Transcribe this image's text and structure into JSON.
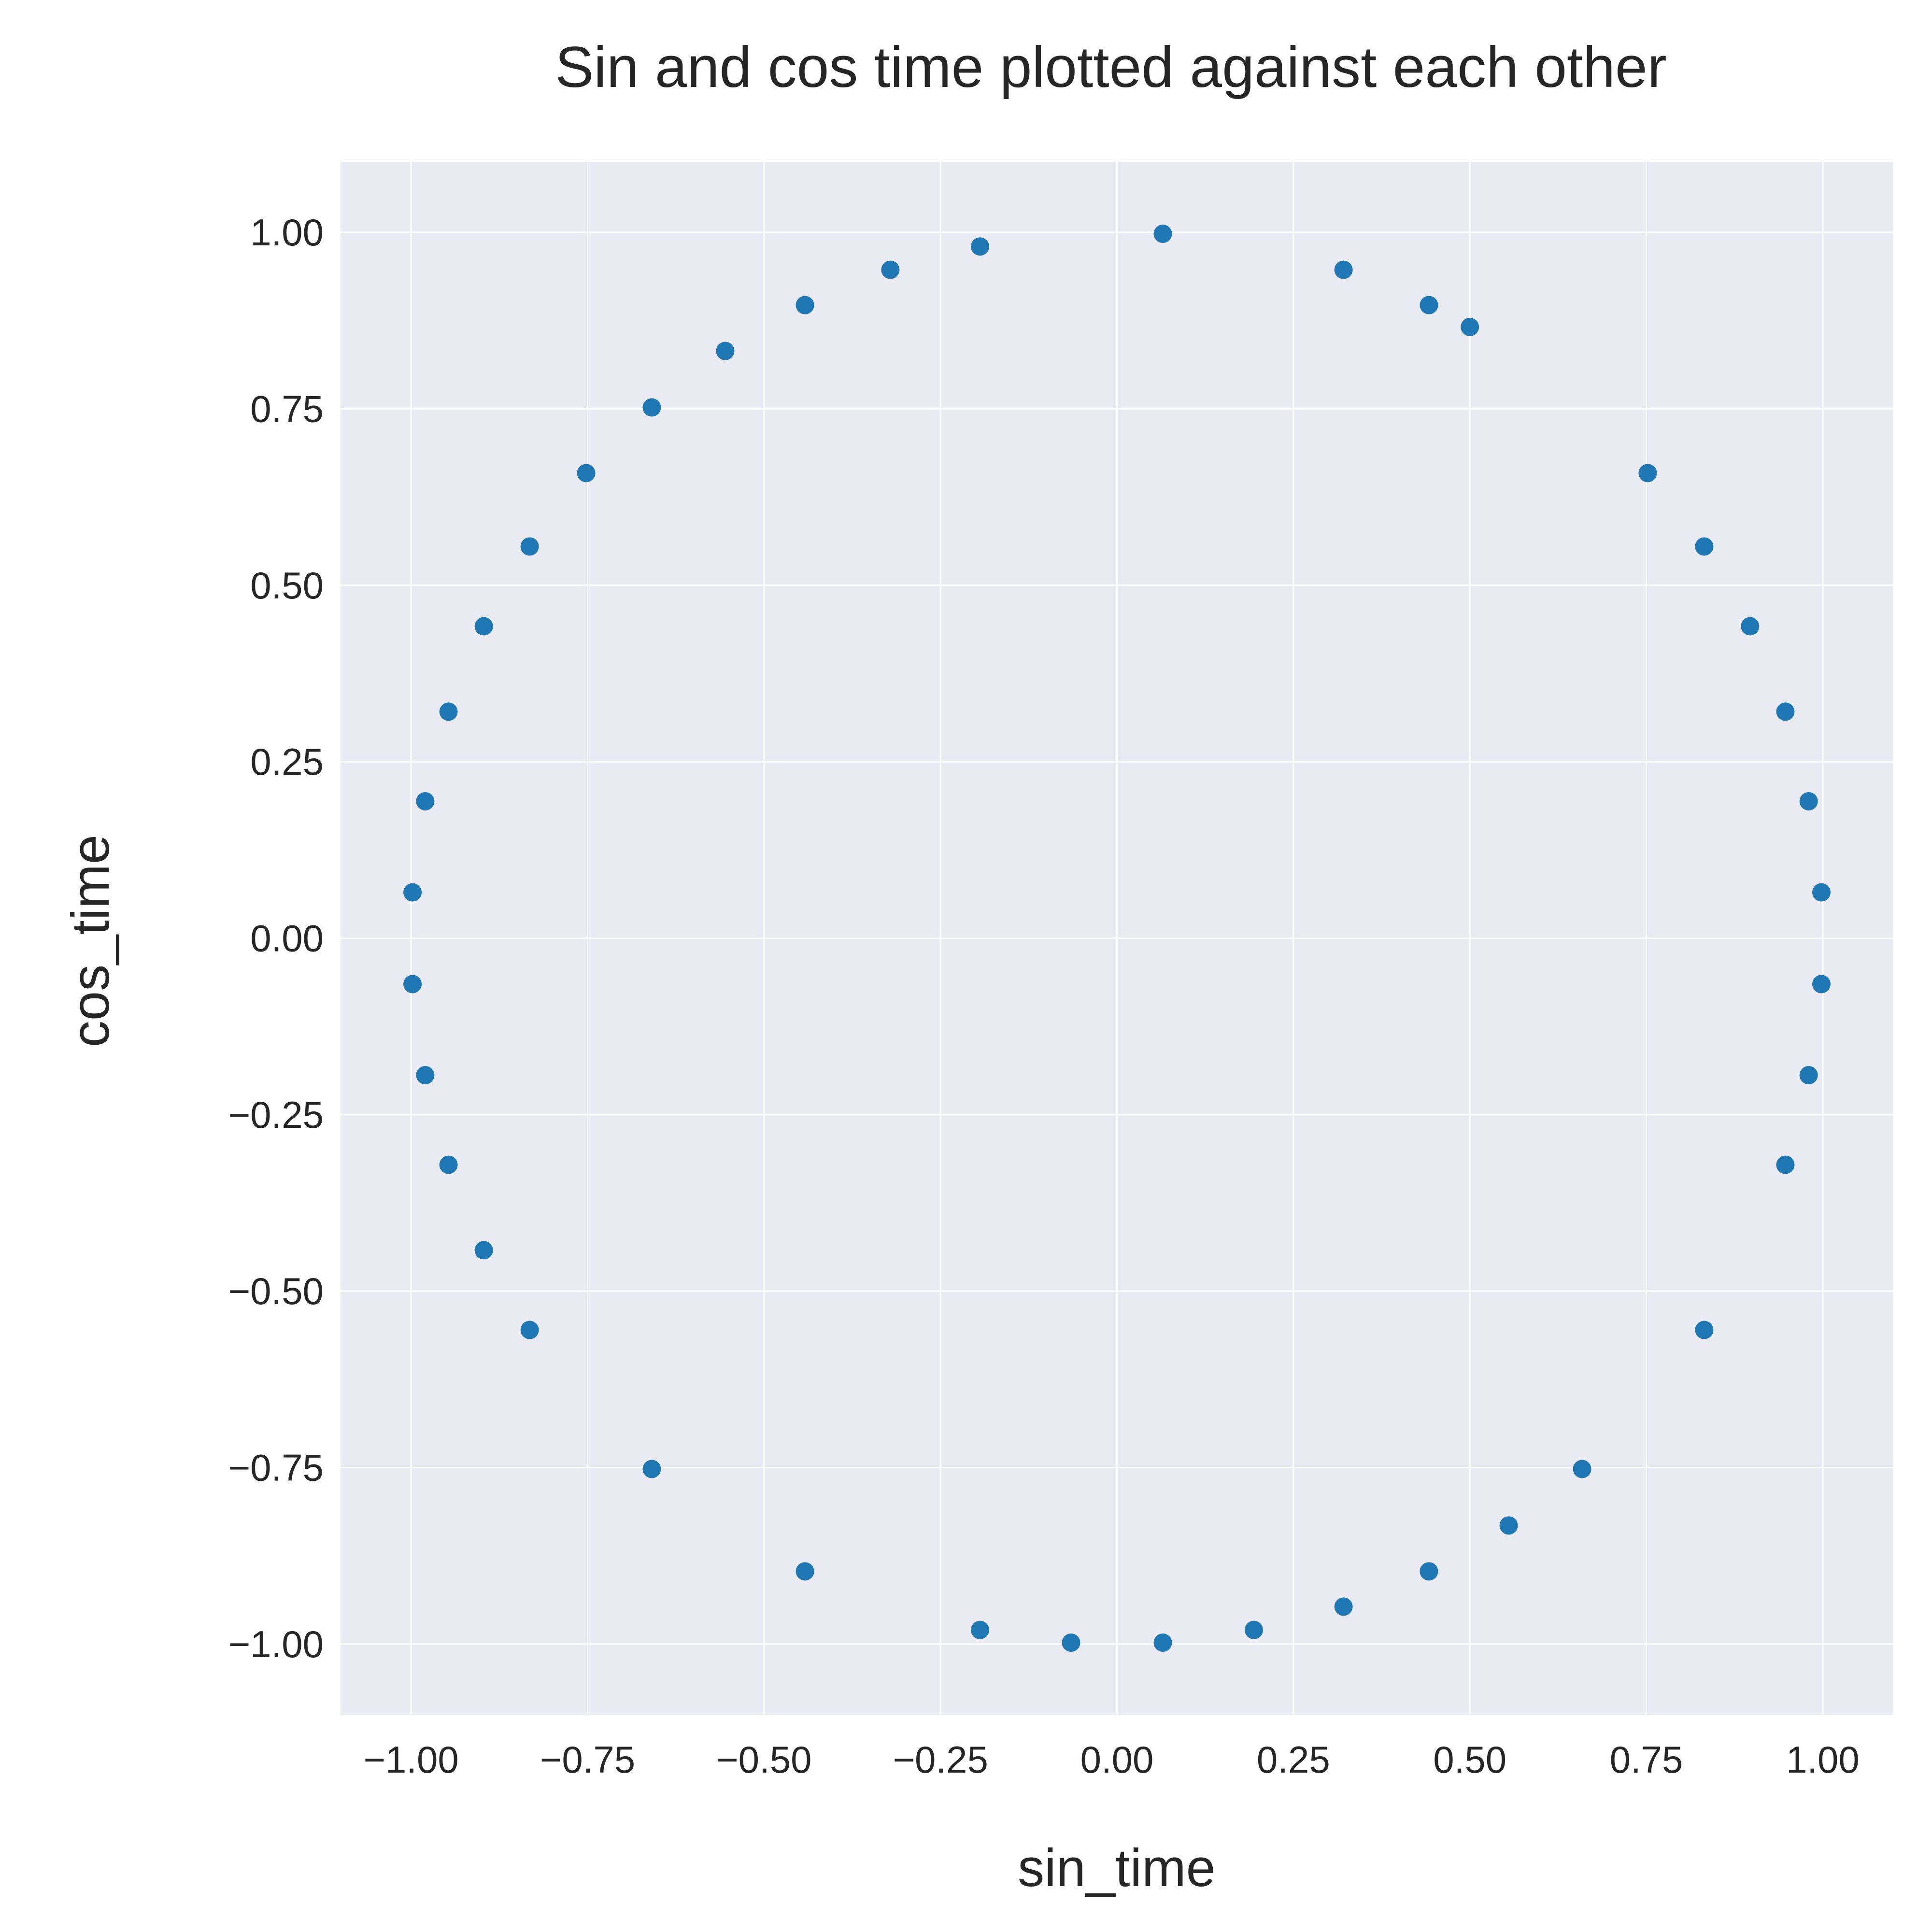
{
  "chart_data": {
    "type": "scatter",
    "title": "Sin and cos time plotted against each other",
    "xlabel": "sin_time",
    "ylabel": "cos_time",
    "xlim": [
      -1.1,
      1.1
    ],
    "ylim": [
      -1.1,
      1.1
    ],
    "grid": true,
    "legend": "none",
    "colors": {
      "point": "#1f77b4",
      "plot_background": "#eaeaf2",
      "grid": "#ffffff",
      "text": "#262626"
    },
    "x_ticks": [
      -1.0,
      -0.75,
      -0.5,
      -0.25,
      0.0,
      0.25,
      0.5,
      0.75,
      1.0
    ],
    "x_tick_labels": [
      "−1.00",
      "−0.75",
      "−0.50",
      "−0.25",
      "0.00",
      "0.25",
      "0.50",
      "0.75",
      "1.00"
    ],
    "y_ticks": [
      -1.0,
      -0.75,
      -0.5,
      -0.25,
      0.0,
      0.25,
      0.5,
      0.75,
      1.0
    ],
    "y_tick_labels": [
      "−1.00",
      "−0.75",
      "−0.50",
      "−0.25",
      "0.00",
      "0.25",
      "0.50",
      "0.75",
      "1.00"
    ],
    "series": [
      {
        "name": "points",
        "points": [
          {
            "x": 0.065,
            "y": 0.998
          },
          {
            "x": 0.321,
            "y": 0.947
          },
          {
            "x": 0.442,
            "y": 0.897
          },
          {
            "x": 0.5,
            "y": 0.866
          },
          {
            "x": 0.752,
            "y": 0.659
          },
          {
            "x": 0.832,
            "y": 0.555
          },
          {
            "x": 0.897,
            "y": 0.442
          },
          {
            "x": 0.947,
            "y": 0.321
          },
          {
            "x": 0.98,
            "y": 0.194
          },
          {
            "x": 0.998,
            "y": 0.065
          },
          {
            "x": 0.998,
            "y": -0.065
          },
          {
            "x": 0.98,
            "y": -0.194
          },
          {
            "x": 0.947,
            "y": -0.321
          },
          {
            "x": 0.832,
            "y": -0.555
          },
          {
            "x": 0.659,
            "y": -0.752
          },
          {
            "x": 0.555,
            "y": -0.832
          },
          {
            "x": 0.442,
            "y": -0.897
          },
          {
            "x": 0.321,
            "y": -0.947
          },
          {
            "x": 0.194,
            "y": -0.98
          },
          {
            "x": 0.065,
            "y": -0.998
          },
          {
            "x": -0.065,
            "y": -0.998
          },
          {
            "x": -0.194,
            "y": -0.98
          },
          {
            "x": -0.442,
            "y": -0.897
          },
          {
            "x": -0.659,
            "y": -0.752
          },
          {
            "x": -0.832,
            "y": -0.555
          },
          {
            "x": -0.897,
            "y": -0.442
          },
          {
            "x": -0.947,
            "y": -0.321
          },
          {
            "x": -0.98,
            "y": -0.194
          },
          {
            "x": -0.998,
            "y": -0.065
          },
          {
            "x": -0.998,
            "y": 0.065
          },
          {
            "x": -0.98,
            "y": 0.194
          },
          {
            "x": -0.947,
            "y": 0.321
          },
          {
            "x": -0.897,
            "y": 0.442
          },
          {
            "x": -0.832,
            "y": 0.555
          },
          {
            "x": -0.752,
            "y": 0.659
          },
          {
            "x": -0.659,
            "y": 0.752
          },
          {
            "x": -0.555,
            "y": 0.832
          },
          {
            "x": -0.442,
            "y": 0.897
          },
          {
            "x": -0.321,
            "y": 0.947
          },
          {
            "x": -0.194,
            "y": 0.98
          }
        ]
      }
    ]
  }
}
